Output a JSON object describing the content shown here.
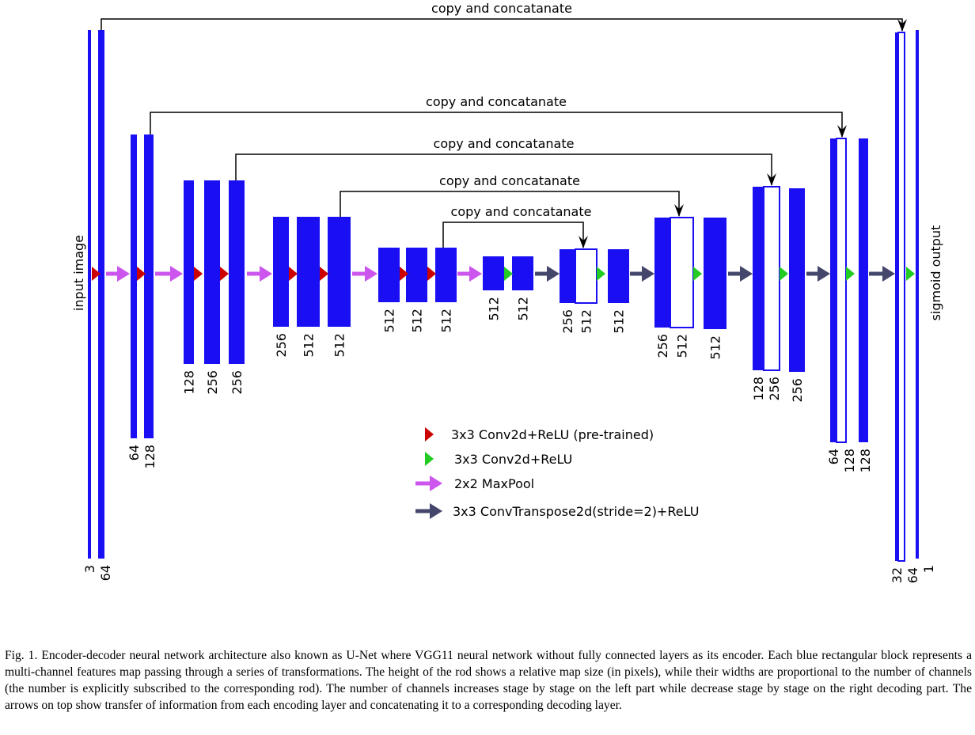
{
  "side_labels": {
    "input": "input image",
    "output": "sigmoid output"
  },
  "skip_label": "copy and concatanate",
  "blocks": [
    "3",
    "64",
    "64",
    "128",
    "128",
    "256",
    "256",
    "256",
    "512",
    "512",
    "512",
    "512",
    "512",
    "512",
    "512",
    "256",
    "512",
    "512",
    "256",
    "512",
    "512",
    "128",
    "256",
    "256",
    "64",
    "128",
    "128",
    "32",
    "64",
    "1"
  ],
  "legend": [
    {
      "label": "3x3 Conv2d+ReLU (pre-trained)",
      "color": "#cc0000"
    },
    {
      "label": "3x3 Conv2d+ReLU",
      "color": "#22cc22"
    },
    {
      "label": "2x2 MaxPool",
      "color": "#cc55ee"
    },
    {
      "label": "3x3 ConvTranspose2d(stride=2)+ReLU",
      "color": "#44476b"
    }
  ],
  "colors": {
    "block": "#1a0ff2"
  },
  "caption": "Fig. 1.   Encoder-decoder neural network architecture also known as U-Net where VGG11 neural network without fully connected layers as its encoder. Each blue rectangular block represents a multi-channel features map passing through a series of transformations. The height of the rod shows a relative map size (in pixels), while their widths are proportional to the number of channels (the number is explicitly subscribed to the corresponding rod). The number of channels increases stage by stage on the left part while decrease stage by stage on the right decoding part. The arrows on top show transfer of information from each encoding layer and concatenating it to a corresponding decoding layer."
}
